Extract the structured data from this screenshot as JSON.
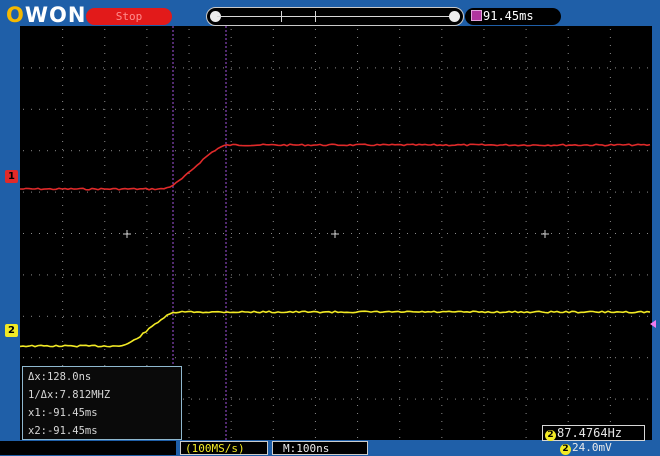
{
  "header": {
    "brand": "OWON",
    "run_state": "Stop",
    "horizontal_position": "91.45ms"
  },
  "channels": [
    {
      "id": "1",
      "color": "#e02a2a"
    },
    {
      "id": "2",
      "color": "#f2ea25"
    }
  ],
  "measurements": {
    "delta_x": "Δx:128.0ns",
    "inverse_delta_x": "1/Δx:7.812MHZ",
    "x1": "x1:-91.45ms",
    "x2": "x2:-91.45ms"
  },
  "frequency": {
    "channel": "2",
    "value": "87.4764Hz"
  },
  "status_bar": {
    "ch1_scale": "",
    "ch2_scale": "(100MS/s)",
    "timebase": "M:100ns",
    "trigger_level": "24.0mV",
    "trigger_channel": "2"
  },
  "colors": {
    "background": "#1f5fa8",
    "grid_bg": "#000000",
    "ch1_trace": "#e02a2a",
    "ch2_trace": "#f2ea25",
    "cursor": "#a455e0",
    "stop_badge": "#e21a1a"
  }
}
